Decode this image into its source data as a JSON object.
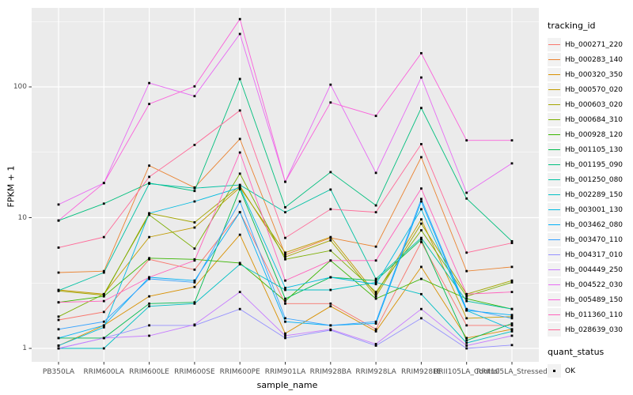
{
  "chart_data": {
    "type": "line",
    "title": "",
    "xlabel": "sample_name",
    "ylabel": "FPKM + 1",
    "yscale": "log10",
    "ytick_labels": [
      "1",
      "10",
      "100"
    ],
    "ytick_values": [
      1,
      10,
      100
    ],
    "yminor_values": [
      3.162,
      31.62,
      316.2
    ],
    "ylim": [
      0.79,
      400
    ],
    "grid": "on",
    "panel_bg": "#EBEBEB",
    "grid_color": "#FFFFFF",
    "marker": "black-square",
    "marker_color": "#000000",
    "legend_position": "right",
    "legend_title": "tracking_id",
    "quant_legend": {
      "title": "quant_status",
      "items": [
        "OK"
      ]
    },
    "categories": [
      "PB350LA",
      "RRIM600LA",
      "RRIM600LE",
      "RRIM600SE",
      "RRIM600PE",
      "RRIM901LA",
      "RRIM928BA",
      "RRIM928LA",
      "RRIM928LE",
      "RRII105LA_Control",
      "RRII105LA_Stressed"
    ],
    "series": [
      {
        "name": "Hb_000271_220",
        "color": "#F8766D",
        "values": [
          1.65,
          1.9,
          4.8,
          4.0,
          11,
          2.2,
          2.2,
          1.4,
          6.5,
          1.5,
          1.5
        ]
      },
      {
        "name": "Hb_000283_140",
        "color": "#EA8331",
        "values": [
          3.8,
          3.9,
          25,
          17,
          40,
          5.2,
          7.0,
          6.0,
          29,
          3.9,
          4.2
        ]
      },
      {
        "name": "Hb_000320_350",
        "color": "#D89000",
        "values": [
          1.05,
          1.5,
          2.5,
          2.95,
          7.4,
          1.3,
          2.1,
          1.35,
          4.2,
          1.2,
          1.4
        ]
      },
      {
        "name": "Hb_000570_020",
        "color": "#C09B00",
        "values": [
          2.8,
          2.6,
          7.1,
          8.4,
          17,
          5.4,
          7.1,
          2.6,
          9.7,
          1.7,
          1.75
        ]
      },
      {
        "name": "Hb_000603_020",
        "color": "#A3A500",
        "values": [
          2.75,
          2.55,
          10.8,
          9.2,
          17.5,
          5.0,
          6.7,
          2.5,
          9.0,
          2.6,
          3.3
        ]
      },
      {
        "name": "Hb_000684_310",
        "color": "#7CAE00",
        "values": [
          1.75,
          2.6,
          10.5,
          5.8,
          21.7,
          4.8,
          5.6,
          2.7,
          8.0,
          2.5,
          3.2
        ]
      },
      {
        "name": "Hb_000928_120",
        "color": "#39B600",
        "values": [
          2.25,
          2.5,
          4.9,
          4.8,
          4.5,
          2.3,
          4.7,
          2.4,
          3.4,
          2.4,
          2.0
        ]
      },
      {
        "name": "Hb_001105_130",
        "color": "#00BB4E",
        "values": [
          1.2,
          1.2,
          2.2,
          2.25,
          16.5,
          2.4,
          3.5,
          3.3,
          6.8,
          1.15,
          1.55
        ]
      },
      {
        "name": "Hb_001195_090",
        "color": "#00BF7D",
        "values": [
          9.5,
          12.8,
          18.4,
          16,
          115,
          12,
          22.3,
          12.4,
          69,
          14,
          6.6
        ]
      },
      {
        "name": "Hb_001250_080",
        "color": "#00C1A3",
        "values": [
          2.77,
          3.8,
          18.2,
          16.8,
          17.8,
          11,
          16.4,
          3.4,
          7.0,
          2.3,
          2.0
        ]
      },
      {
        "name": "Hb_002289_150",
        "color": "#00BFC4",
        "values": [
          1.0,
          1.0,
          2.1,
          2.2,
          4.4,
          2.8,
          2.8,
          3.2,
          2.6,
          1.1,
          1.35
        ]
      },
      {
        "name": "Hb_003001_130",
        "color": "#00BAE0",
        "values": [
          1.05,
          1.45,
          10.8,
          13.3,
          17,
          2.9,
          3.5,
          3.1,
          11.6,
          1.95,
          1.4
        ]
      },
      {
        "name": "Hb_003462_080",
        "color": "#00B0F6",
        "values": [
          1.2,
          1.5,
          3.5,
          3.3,
          11,
          1.6,
          1.5,
          1.55,
          13.3,
          1.95,
          1.8
        ]
      },
      {
        "name": "Hb_003470_110",
        "color": "#35A2FF",
        "values": [
          1.4,
          1.6,
          3.4,
          3.2,
          13.3,
          1.7,
          1.5,
          1.6,
          13.9,
          2.0,
          1.7
        ]
      },
      {
        "name": "Hb_004317_010",
        "color": "#9590FF",
        "values": [
          1.0,
          1.2,
          1.5,
          1.5,
          2.0,
          1.2,
          1.38,
          1.05,
          1.7,
          1.0,
          1.06
        ]
      },
      {
        "name": "Hb_004449_250",
        "color": "#C77CFF",
        "values": [
          1.0,
          1.2,
          1.25,
          1.52,
          2.7,
          1.25,
          1.4,
          1.08,
          2.0,
          1.05,
          1.25
        ]
      },
      {
        "name": "Hb_004522_030",
        "color": "#E76BF3",
        "values": [
          12.6,
          18.4,
          107,
          85,
          254,
          18.8,
          104,
          22,
          118,
          15.5,
          26
        ]
      },
      {
        "name": "Hb_005489_150",
        "color": "#FA62DB",
        "values": [
          9.5,
          18.4,
          74,
          101,
          330,
          18.8,
          76,
          60,
          181,
          39,
          39
        ]
      },
      {
        "name": "Hb_011360_110",
        "color": "#FF62BC",
        "values": [
          2.25,
          2.3,
          3.5,
          4.7,
          31.5,
          3.3,
          4.7,
          4.7,
          16.7,
          2.6,
          2.7
        ]
      },
      {
        "name": "Hb_028639_030",
        "color": "#FF6A98",
        "values": [
          5.9,
          7.1,
          20.5,
          36,
          66,
          7.0,
          11.6,
          11,
          36.5,
          5.4,
          6.4
        ]
      }
    ]
  },
  "layout_note": ""
}
